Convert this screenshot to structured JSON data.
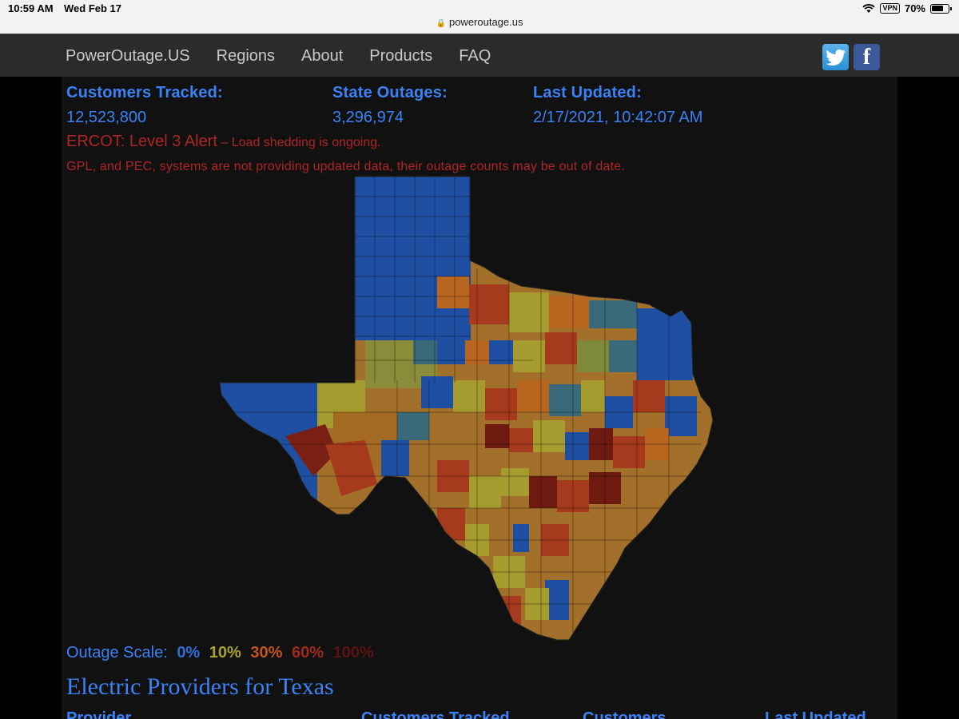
{
  "status_bar": {
    "time": "10:59 AM",
    "date": "Wed Feb 17",
    "vpn": "VPN",
    "battery": "70%"
  },
  "browser": {
    "url": "poweroutage.us"
  },
  "nav": {
    "brand": "PowerOutage.US",
    "items": [
      "Regions",
      "About",
      "Products",
      "FAQ"
    ],
    "twitter_icon": "twitter-icon",
    "facebook_icon": "facebook-icon",
    "facebook_glyph": "f"
  },
  "stats": {
    "customers_tracked_label": "Customers Tracked:",
    "customers_tracked_value": "12,523,800",
    "state_outages_label": "State Outages:",
    "state_outages_value": "3,296,974",
    "last_updated_label": "Last Updated:",
    "last_updated_value": "2/17/2021, 10:42:07 AM"
  },
  "alerts": {
    "ercot_main": "ERCOT: Level 3 Alert",
    "ercot_detail": " – Load shedding is ongoing.",
    "data_warning": "GPL, and PEC, systems are not providing updated data, their outage counts may be out of date."
  },
  "scale": {
    "label": "Outage Scale:",
    "steps": [
      {
        "text": "0%",
        "color": "#2f6fd6"
      },
      {
        "text": "10%",
        "color": "#a8a132"
      },
      {
        "text": "30%",
        "color": "#c0561e"
      },
      {
        "text": "60%",
        "color": "#9e2a1b"
      },
      {
        "text": "100%",
        "color": "#5a1410"
      }
    ]
  },
  "map": {
    "region": "Texas",
    "colors": {
      "blue": "#1f4fa3",
      "teal": "#3a6a7a",
      "olive": "#7e8a3a",
      "yellow": "#a59b2e",
      "orange": "#b8661f",
      "red": "#a63a1c",
      "darkred": "#6e1a10"
    }
  },
  "providers": {
    "title": "Electric Providers for Texas",
    "columns": [
      "Provider",
      "Customers Tracked",
      "Customers",
      "Last Updated"
    ]
  }
}
